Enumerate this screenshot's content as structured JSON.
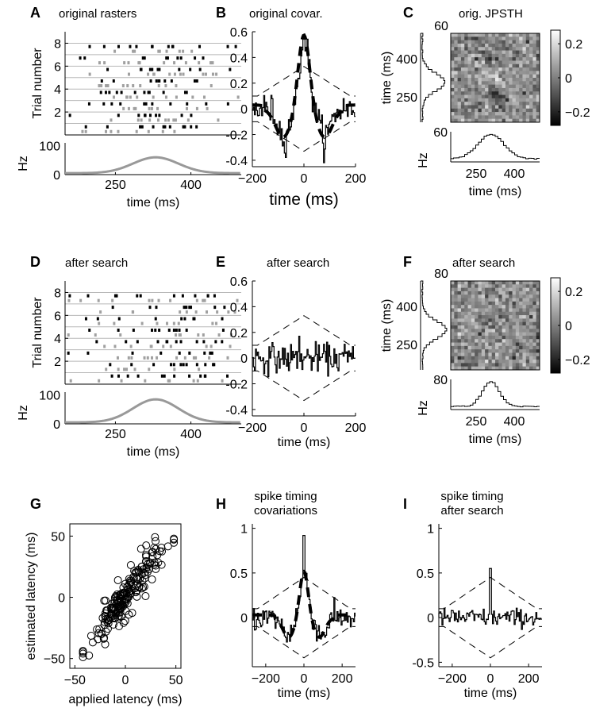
{
  "figure": {
    "panels": [
      {
        "letter": "A",
        "title": "original rasters"
      },
      {
        "letter": "B",
        "title": "original covar."
      },
      {
        "letter": "C",
        "title": "orig. JPSTH"
      },
      {
        "letter": "D",
        "title": "after search"
      },
      {
        "letter": "E",
        "title": "after search"
      },
      {
        "letter": "F",
        "title": "after search"
      },
      {
        "letter": "G",
        "title": ""
      },
      {
        "letter": "H",
        "title": "spike timing covariations"
      },
      {
        "letter": "I",
        "title": "spike timing after search"
      }
    ]
  },
  "chart_data": [
    {
      "panel": "A",
      "type": "raster",
      "title": "original rasters",
      "ylabel": "Trial number",
      "yticks": [
        2,
        4,
        6,
        8
      ],
      "ylim": [
        0,
        9
      ],
      "psth": {
        "ylabel": "Hz",
        "yticks": [
          0,
          100
        ],
        "xticks": [
          250,
          400
        ],
        "xlabel": "time (ms)",
        "xlim": [
          150,
          500
        ],
        "peak_hz": 60,
        "peak_ms": 330
      },
      "colors": {
        "neuron1": "#000000",
        "neuron2": "#a0a0a0"
      }
    },
    {
      "panel": "B",
      "type": "line",
      "title": "original covar.",
      "xlabel": "time (ms)",
      "xlim": [
        -200,
        200
      ],
      "xticks": [
        -200,
        0,
        200
      ],
      "ylim": [
        -0.45,
        0.6
      ],
      "yticks": [
        0.6,
        0.4,
        0.2,
        0,
        -0.2,
        -0.4
      ],
      "peak": {
        "x": 0,
        "y": 0.58
      },
      "band": {
        "upper_center": 0.33,
        "upper_edge": 0.1,
        "lower_center": -0.33,
        "lower_edge": -0.1
      }
    },
    {
      "panel": "C",
      "type": "heatmap",
      "title": "orig. JPSTH",
      "xlabel": "time (ms)",
      "ylabel": "time (ms)",
      "xticks": [
        250,
        400
      ],
      "yticks": [
        250,
        400
      ],
      "colorbar": {
        "ticks": [
          0.2,
          0,
          -0.2
        ],
        "range": [
          -0.28,
          0.28
        ]
      },
      "marginal_top_label": "60",
      "marginal_bottom_label": "60",
      "psth_ylabel": "Hz"
    },
    {
      "panel": "D",
      "type": "raster",
      "title": "after search",
      "ylabel": "Trial number",
      "yticks": [
        2,
        4,
        6,
        8
      ],
      "ylim": [
        0,
        9
      ],
      "psth": {
        "ylabel": "Hz",
        "yticks": [
          0,
          100
        ],
        "xticks": [
          250,
          400
        ],
        "xlabel": "time (ms)",
        "xlim": [
          150,
          500
        ],
        "peak_hz": 85,
        "peak_ms": 330
      }
    },
    {
      "panel": "E",
      "type": "line",
      "title": "after search",
      "xlabel": "time (ms)",
      "xlim": [
        -200,
        200
      ],
      "xticks": [
        -200,
        0,
        200
      ],
      "ylim": [
        -0.45,
        0.6
      ],
      "yticks": [
        0.6,
        0.4,
        0.2,
        0,
        -0.2,
        -0.4
      ],
      "peak": {
        "x": -20,
        "y": 0.17
      },
      "band": {
        "upper_center": 0.33,
        "upper_edge": 0.1,
        "lower_center": -0.33,
        "lower_edge": -0.1
      }
    },
    {
      "panel": "F",
      "type": "heatmap",
      "title": "after search",
      "xlabel": "time (ms)",
      "ylabel": "time (ms)",
      "xticks": [
        250,
        400
      ],
      "yticks": [
        250,
        400
      ],
      "colorbar": {
        "ticks": [
          0.2,
          0,
          -0.2
        ],
        "range": [
          -0.28,
          0.28
        ]
      },
      "marginal_top_label": "80",
      "marginal_bottom_label": "80",
      "psth_ylabel": "Hz"
    },
    {
      "panel": "G",
      "type": "scatter",
      "xlabel": "applied latency (ms)",
      "ylabel": "estimated latency (ms)",
      "xlim": [
        -55,
        55
      ],
      "ylim": [
        -58,
        60
      ],
      "xticks": [
        -50,
        0,
        50
      ],
      "yticks": [
        50,
        0,
        -50
      ],
      "n_points": 200,
      "slope": 1.05
    },
    {
      "panel": "H",
      "type": "line",
      "title": "spike timing covariations",
      "xlabel": "time (ms)",
      "xlim": [
        -270,
        270
      ],
      "xticks": [
        -200,
        0,
        200
      ],
      "ylim": [
        -0.55,
        1.05
      ],
      "yticks": [
        1,
        0.5,
        0
      ],
      "peak": {
        "x": 0,
        "y": 0.92
      }
    },
    {
      "panel": "I",
      "type": "line",
      "title": "spike timing after search",
      "xlabel": "time (ms)",
      "xlim": [
        -270,
        270
      ],
      "xticks": [
        -200,
        0,
        200
      ],
      "ylim": [
        -0.55,
        1.05
      ],
      "yticks": [
        1,
        0.5,
        0,
        -0.5
      ],
      "peak": {
        "x": 0,
        "y": 0.55
      }
    }
  ]
}
